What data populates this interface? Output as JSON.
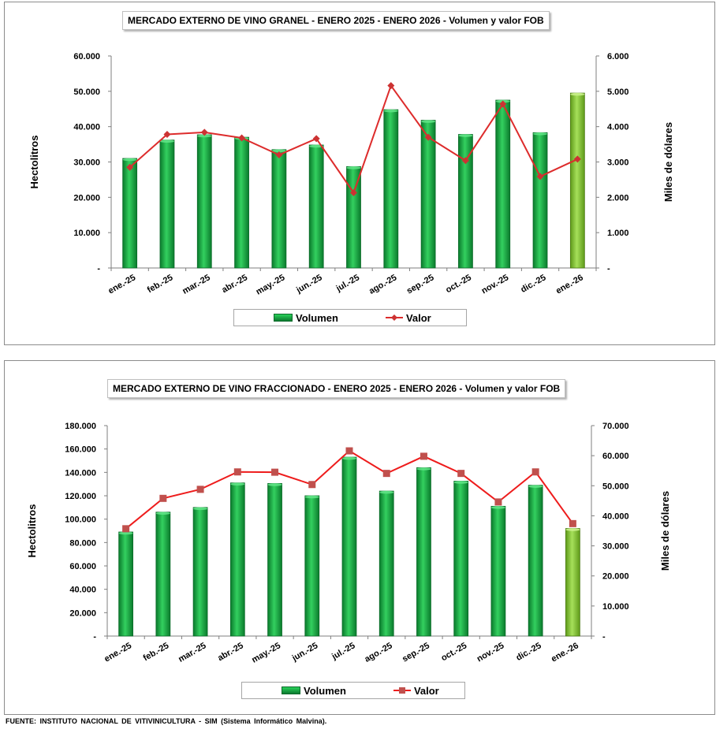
{
  "charts": {
    "granel": {
      "title": "MERCADO EXTERNO DE VINO GRANEL - ENERO 2025 - ENERO 2026 - Volumen y valor FOB",
      "legend_volumen": "Volumen",
      "legend_valor": "Valor",
      "marker": "diamond",
      "line_color": "#dd2c2c",
      "marker_color": "#cc3333"
    },
    "fraccionado": {
      "title": "MERCADO EXTERNO DE VINO FRACCIONADO - ENERO 2025 - ENERO 2026 - Volumen y valor FOB",
      "legend_volumen": "Volumen",
      "legend_valor": "Valor",
      "marker": "square",
      "line_color": "#ee1c1c",
      "marker_color": "#c0504d"
    }
  },
  "source": "FUENTE:  INSTITUTO  NACIONAL  DE  VITIVINICULTURA   - SIM (Sistema   Informático   Malvina).",
  "colors": {
    "bar_dark": "#0a7a2c",
    "bar_light": "#33d05f",
    "bar_last_dark": "#5f9a1a",
    "bar_last_light": "#a6e05a"
  },
  "chart_data": [
    {
      "type": "bar",
      "title": "MERCADO EXTERNO DE VINO GRANEL - ENERO 2025 - ENERO 2026 - Volumen y valor FOB",
      "categories": [
        "ene.-25",
        "feb.-25",
        "mar.-25",
        "abr.-25",
        "may.-25",
        "jun.-25",
        "jul.-25",
        "ago.-25",
        "sep.-25",
        "oct.-25",
        "nov.-25",
        "dic.-25",
        "ene.-26"
      ],
      "series": [
        {
          "name": "Volumen",
          "type": "bar",
          "axis": "left",
          "values": [
            31000,
            36200,
            37700,
            37000,
            33500,
            34800,
            28700,
            44800,
            41800,
            37800,
            47500,
            38300,
            49500
          ]
        },
        {
          "name": "Valor",
          "type": "line",
          "axis": "right",
          "values": [
            2850,
            3780,
            3840,
            3680,
            3200,
            3660,
            2130,
            5160,
            3700,
            3040,
            4640,
            2590,
            3080
          ]
        }
      ],
      "ylabel": "Hectolitros",
      "y2label": "Miles de dólares",
      "ylim": [
        0,
        60000
      ],
      "y2lim": [
        0,
        6000
      ],
      "yticks": [
        "-",
        "10.000",
        "20.000",
        "30.000",
        "40.000",
        "50.000",
        "60.000"
      ],
      "y2ticks": [
        "-",
        "1.000",
        "2.000",
        "3.000",
        "4.000",
        "5.000",
        "6.000"
      ],
      "grid": false,
      "legend": "bottom"
    },
    {
      "type": "bar",
      "title": "MERCADO EXTERNO DE VINO FRACCIONADO - ENERO 2025 - ENERO 2026 - Volumen y valor FOB",
      "categories": [
        "ene.-25",
        "feb.-25",
        "mar.-25",
        "abr.-25",
        "may.-25",
        "jun.-25",
        "jul.-25",
        "ago.-25",
        "sep.-25",
        "oct.-25",
        "nov.-25",
        "dic.-25",
        "ene.-26"
      ],
      "series": [
        {
          "name": "Volumen",
          "type": "bar",
          "axis": "left",
          "values": [
            89000,
            106000,
            110000,
            131000,
            130500,
            120000,
            153000,
            124000,
            144000,
            132500,
            111000,
            129000,
            92000
          ]
        },
        {
          "name": "Valor",
          "type": "line",
          "axis": "right",
          "values": [
            35700,
            45800,
            48800,
            54600,
            54500,
            50400,
            61600,
            54100,
            59800,
            54100,
            44600,
            54600,
            37400
          ]
        }
      ],
      "ylabel": "Hectolitros",
      "y2label": "Miles de dólares",
      "ylim": [
        0,
        180000
      ],
      "y2lim": [
        0,
        70000
      ],
      "yticks": [
        "-",
        "20.000",
        "40.000",
        "60.000",
        "80.000",
        "100.000",
        "120.000",
        "140.000",
        "160.000",
        "180.000"
      ],
      "y2ticks": [
        "-",
        "10.000",
        "20.000",
        "30.000",
        "40.000",
        "50.000",
        "60.000",
        "70.000"
      ],
      "grid": false,
      "legend": "bottom"
    }
  ]
}
